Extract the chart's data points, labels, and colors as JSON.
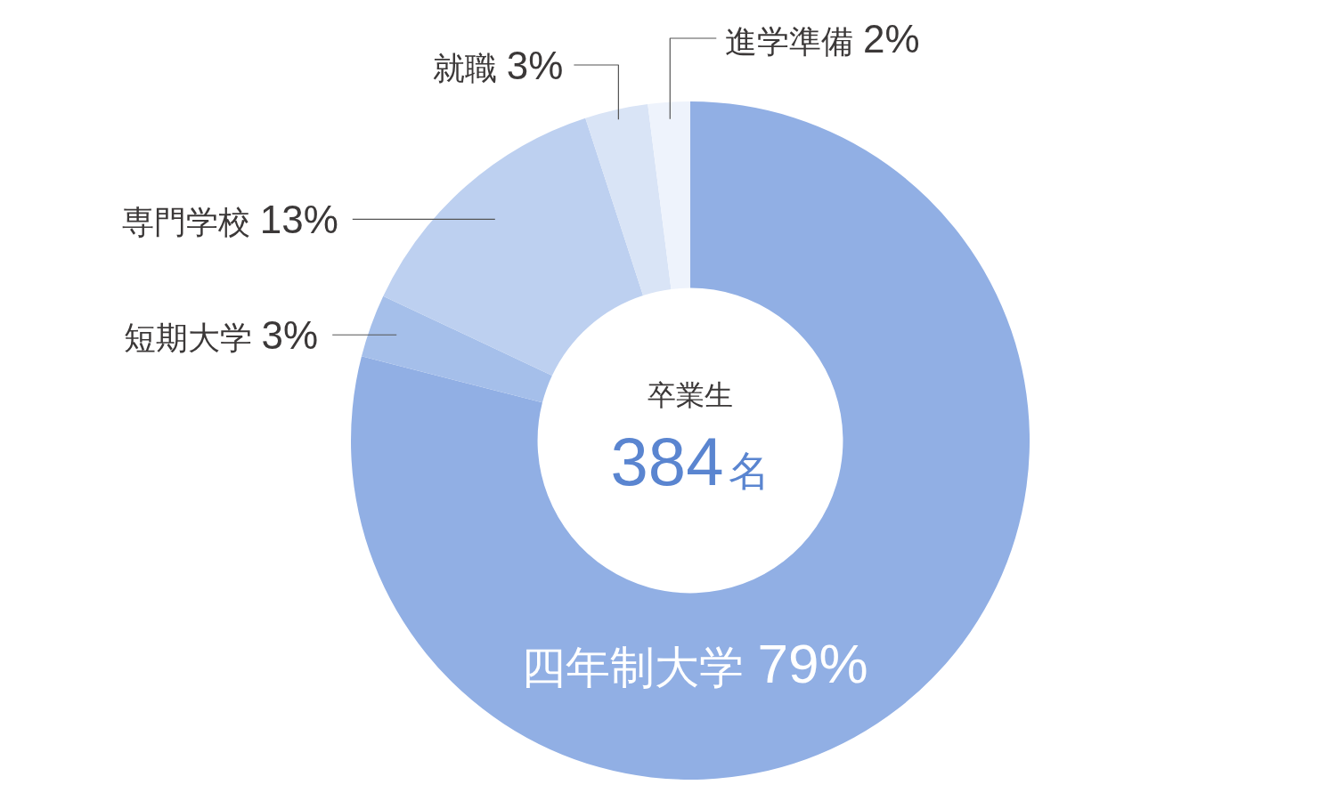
{
  "chart_data": {
    "type": "donut",
    "categories": [
      "四年制大学",
      "短期大学",
      "専門学校",
      "就職",
      "進学準備"
    ],
    "values": [
      79,
      3,
      13,
      3,
      2
    ],
    "value_labels": [
      "79%",
      "3%",
      "13%",
      "3%",
      "2%"
    ],
    "colors": [
      "#91afe4",
      "#a5bfea",
      "#bdd0f0",
      "#d9e4f6",
      "#eef3fc"
    ],
    "annotations": [
      "卒業生",
      "384",
      "名"
    ]
  }
}
